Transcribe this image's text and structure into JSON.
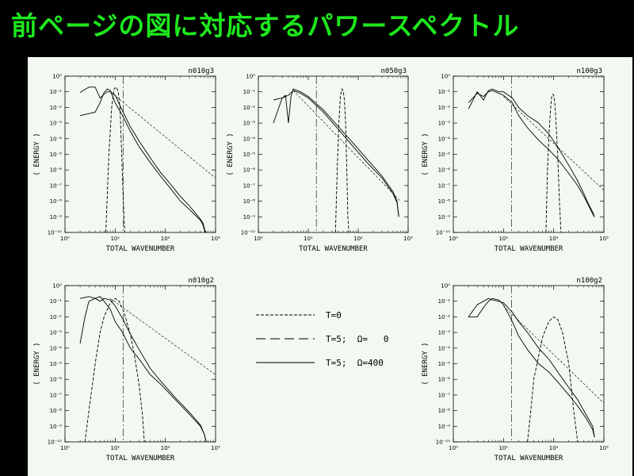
{
  "slide": {
    "title": "前ページの図に対応するパワースペクトル"
  },
  "legend": [
    {
      "label": "T=0",
      "style": "dashed"
    },
    {
      "label": "T=5;  Ω=   0",
      "style": "longdash"
    },
    {
      "label": "T=5;  Ω=400",
      "style": "solid"
    }
  ],
  "chart_data": [
    {
      "type": "line",
      "title": "n010g3",
      "xlabel": "TOTAL WAVENUMBER",
      "ylabel": "( ENERGY )",
      "xscale": "log",
      "yscale": "log",
      "xlim": [
        1,
        1000
      ],
      "ylim": [
        1e-10,
        1
      ],
      "x_ticks": [
        "10⁰",
        "10¹",
        "10²",
        "10³"
      ],
      "y_ticks": [
        "10⁰",
        "10⁻¹",
        "10⁻²",
        "10⁻³",
        "10⁻⁴",
        "10⁻⁵",
        "10⁻⁶",
        "10⁻⁷",
        "10⁻⁸",
        "10⁻⁹",
        "10⁻¹⁰"
      ],
      "series": [
        {
          "style": "dashed",
          "x": [
            6.5,
            7.5,
            8.5,
            9.5,
            10.5,
            11.5,
            12.5,
            13.5,
            14.5,
            15.5
          ],
          "y": [
            1e-10,
            1e-05,
            0.01,
            0.15,
            0.2,
            0.1,
            0.008,
            1e-05,
            1e-08,
            1e-10
          ]
        },
        {
          "style": "solid",
          "x": [
            2,
            3,
            4,
            5,
            6,
            7,
            8,
            10,
            14,
            20,
            30,
            50,
            80,
            120,
            200,
            300,
            400,
            500,
            560,
            620,
            660
          ],
          "y": [
            0.003,
            0.004,
            0.005,
            0.02,
            0.09,
            0.15,
            0.12,
            0.02,
            0.003,
            0.0003,
            3e-05,
            3e-06,
            4e-07,
            8e-08,
            1e-08,
            3e-09,
            1.2e-09,
            6e-10,
            3e-10,
            1e-10,
            1e-10
          ]
        },
        {
          "style": "solid",
          "x": [
            2,
            3,
            4,
            5,
            6,
            7,
            8,
            10,
            14,
            20,
            30,
            50,
            80,
            120,
            200,
            300,
            400,
            500,
            560,
            620,
            660
          ],
          "y": [
            0.09,
            0.2,
            0.2,
            0.04,
            0.07,
            0.1,
            0.1,
            0.06,
            0.006,
            0.0006,
            7e-05,
            6e-06,
            7e-07,
            1.5e-07,
            2e-08,
            5e-09,
            1.7e-09,
            7e-10,
            4e-10,
            1.2e-10,
            1e-10
          ]
        },
        {
          "style": "shortdash",
          "x": [
            8,
            1000
          ],
          "y": [
            0.1,
            3e-07
          ]
        }
      ],
      "vline": 14.5
    },
    {
      "type": "line",
      "title": "n050g3",
      "xlabel": "TOTAL WAVENUMBER",
      "ylabel": "( ENERGY )",
      "xscale": "log",
      "yscale": "log",
      "xlim": [
        1,
        1000
      ],
      "ylim": [
        1e-10,
        1
      ],
      "x_ticks": [
        "10⁰",
        "10¹",
        "10²",
        "10³"
      ],
      "y_ticks": [
        "10⁰",
        "10⁻¹",
        "10⁻²",
        "10⁻³",
        "10⁻⁴",
        "10⁻⁵",
        "10⁻⁶",
        "10⁻⁷",
        "10⁻⁸",
        "10⁻⁹",
        "10⁻¹⁰"
      ],
      "series": [
        {
          "style": "dashed",
          "x": [
            35,
            38,
            41,
            44,
            47,
            50,
            53,
            56,
            59,
            62,
            65
          ],
          "y": [
            1e-10,
            1e-06,
            0.001,
            0.05,
            0.15,
            0.12,
            0.03,
            0.001,
            1e-06,
            1e-09,
            1e-10
          ]
        },
        {
          "style": "solid",
          "x": [
            2,
            3,
            3.5,
            4,
            4.5,
            5,
            7,
            10,
            20,
            40,
            80,
            150,
            300,
            500,
            600,
            650
          ],
          "y": [
            0.001,
            0.04,
            0.06,
            0.001,
            0.05,
            0.15,
            0.1,
            0.05,
            0.007,
            0.0006,
            5e-05,
            5e-06,
            4e-07,
            4e-08,
            1e-08,
            1e-09
          ]
        },
        {
          "style": "solid",
          "x": [
            2,
            3,
            4,
            5,
            7,
            10,
            20,
            40,
            80,
            150,
            300,
            500,
            600,
            650
          ],
          "y": [
            0.03,
            0.04,
            0.06,
            0.12,
            0.08,
            0.04,
            0.005,
            0.0004,
            3e-05,
            3e-06,
            3e-07,
            3e-08,
            8e-09,
            1e-09
          ]
        },
        {
          "style": "shortdash",
          "x": [
            5,
            700
          ],
          "y": [
            0.12,
            1e-08
          ]
        }
      ],
      "vline": 14.5
    },
    {
      "type": "line",
      "title": "n100g3",
      "xlabel": "TOTAL WAVENUMBER",
      "ylabel": "( ENERGY )",
      "xscale": "log",
      "yscale": "log",
      "xlim": [
        1,
        1000
      ],
      "ylim": [
        1e-10,
        1
      ],
      "x_ticks": [
        "10⁰",
        "10¹",
        "10²",
        "10³"
      ],
      "y_ticks": [
        "10⁰",
        "10⁻¹",
        "10⁻²",
        "10⁻³",
        "10⁻⁴",
        "10⁻⁵",
        "10⁻⁶",
        "10⁻⁷",
        "10⁻⁸",
        "10⁻⁹",
        "10⁻¹⁰"
      ],
      "series": [
        {
          "style": "dashed",
          "x": [
            70,
            75,
            80,
            85,
            90,
            95,
            100,
            105,
            110,
            120,
            130,
            140
          ],
          "y": [
            1e-10,
            1e-06,
            0.0001,
            0.003,
            0.04,
            0.07,
            0.06,
            0.02,
            0.002,
            1e-05,
            1e-08,
            1e-10
          ]
        },
        {
          "style": "solid",
          "x": [
            2,
            3,
            4,
            5,
            6,
            8,
            10,
            15,
            20,
            30,
            50,
            80,
            120,
            200,
            300,
            400,
            500,
            600,
            650
          ],
          "y": [
            0.008,
            0.1,
            0.03,
            0.12,
            0.15,
            0.1,
            0.1,
            0.04,
            0.01,
            0.003,
            0.001,
            0.0002,
            3e-05,
            2e-06,
            2e-07,
            3e-08,
            6e-09,
            2e-09,
            1e-09
          ]
        },
        {
          "style": "solid",
          "x": [
            2,
            3,
            4,
            5,
            6,
            8,
            10,
            15,
            20,
            30,
            50,
            80,
            120,
            200,
            300,
            400,
            500,
            600,
            650
          ],
          "y": [
            0.02,
            0.08,
            0.05,
            0.1,
            0.12,
            0.08,
            0.06,
            0.02,
            0.003,
            0.0005,
            8e-05,
            2e-05,
            5e-06,
            6e-07,
            1e-07,
            2e-08,
            5e-09,
            1.5e-09,
            1e-09
          ]
        },
        {
          "style": "shortdash",
          "x": [
            10,
            1000
          ],
          "y": [
            0.05,
            5e-08
          ]
        }
      ],
      "vline": 14.5
    },
    {
      "type": "line",
      "title": "n010g2",
      "xlabel": "TOTAL WAVENUMBER",
      "ylabel": "( ENERGY )",
      "xscale": "log",
      "yscale": "log",
      "xlim": [
        1,
        1000
      ],
      "ylim": [
        1e-10,
        1
      ],
      "x_ticks": [
        "10⁰",
        "10¹",
        "10²",
        "10³"
      ],
      "y_ticks": [
        "10⁰",
        "10⁻¹",
        "10⁻²",
        "10⁻³",
        "10⁻⁴",
        "10⁻⁵",
        "10⁻⁶",
        "10⁻⁷",
        "10⁻⁸",
        "10⁻⁹",
        "10⁻¹⁰"
      ],
      "series": [
        {
          "style": "dashed",
          "x": [
            2.5,
            3,
            4,
            5,
            6,
            8,
            10,
            12,
            15,
            20,
            25,
            30,
            35,
            38
          ],
          "y": [
            1e-10,
            1e-08,
            1e-05,
            0.001,
            0.01,
            0.08,
            0.15,
            0.1,
            0.02,
            0.0008,
            2e-05,
            4e-07,
            5e-09,
            1e-10
          ]
        },
        {
          "style": "solid",
          "x": [
            2,
            2.5,
            3,
            4,
            5,
            6,
            8,
            10,
            14,
            20,
            30,
            50,
            80,
            150,
            300,
            500,
            600,
            650
          ],
          "y": [
            0.0002,
            0.01,
            0.1,
            0.15,
            0.2,
            0.1,
            0.03,
            0.005,
            0.001,
            0.0001,
            2e-05,
            2e-06,
            5e-07,
            6e-08,
            6e-09,
            1e-09,
            3e-10,
            1e-10
          ]
        },
        {
          "style": "solid",
          "x": [
            2,
            3,
            4,
            5,
            6,
            8,
            10,
            14,
            20,
            30,
            50,
            80,
            150,
            300,
            500,
            600,
            650
          ],
          "y": [
            0.15,
            0.2,
            0.15,
            0.1,
            0.15,
            0.12,
            0.05,
            0.008,
            0.0008,
            8e-05,
            5e-06,
            8e-07,
            8e-08,
            8e-09,
            1.2e-09,
            3e-10,
            1e-10
          ]
        },
        {
          "style": "shortdash",
          "x": [
            8,
            1000
          ],
          "y": [
            0.15,
            2e-06
          ]
        }
      ],
      "vline": 14.5
    },
    {
      "type": "line",
      "title": "n100g2",
      "xlabel": "TOTAL WAVENUMBER",
      "ylabel": "( ENERGY )",
      "xscale": "log",
      "yscale": "log",
      "xlim": [
        1,
        1000
      ],
      "ylim": [
        1e-10,
        1
      ],
      "x_ticks": [
        "10⁰",
        "10¹",
        "10²",
        "10³"
      ],
      "y_ticks": [
        "10⁰",
        "10⁻¹",
        "10⁻²",
        "10⁻³",
        "10⁻⁴",
        "10⁻⁵",
        "10⁻⁶",
        "10⁻⁷",
        "10⁻⁸",
        "10⁻⁹",
        "10⁻¹⁰"
      ],
      "series": [
        {
          "style": "dashed",
          "x": [
            30,
            35,
            40,
            50,
            60,
            80,
            100,
            120,
            150,
            200,
            250,
            300
          ],
          "y": [
            1e-10,
            1e-08,
            1e-06,
            3e-05,
            0.0005,
            0.005,
            0.01,
            0.007,
            0.001,
            1e-05,
            1e-08,
            1e-10
          ]
        },
        {
          "style": "solid",
          "x": [
            2,
            3,
            4,
            5,
            6,
            8,
            10,
            15,
            20,
            30,
            50,
            80,
            120,
            200,
            300,
            450,
            600,
            650
          ],
          "y": [
            0.01,
            0.06,
            0.1,
            0.15,
            0.12,
            0.1,
            0.08,
            0.02,
            0.005,
            0.001,
            0.0001,
            2e-05,
            3e-06,
            3e-07,
            5e-08,
            5e-09,
            1e-09,
            2e-10
          ]
        },
        {
          "style": "solid",
          "x": [
            2,
            3,
            4,
            5,
            6,
            8,
            10,
            15,
            20,
            30,
            50,
            80,
            120,
            200,
            300,
            450,
            600,
            650
          ],
          "y": [
            0.01,
            0.01,
            0.04,
            0.1,
            0.15,
            0.12,
            0.06,
            0.005,
            0.0006,
            8e-05,
            1e-05,
            3e-06,
            7e-07,
            1e-07,
            2e-08,
            3e-09,
            6e-10,
            2e-10
          ]
        },
        {
          "style": "shortdash",
          "x": [
            10,
            1000
          ],
          "y": [
            0.05,
            3e-08
          ]
        }
      ],
      "vline": 14.5
    }
  ]
}
